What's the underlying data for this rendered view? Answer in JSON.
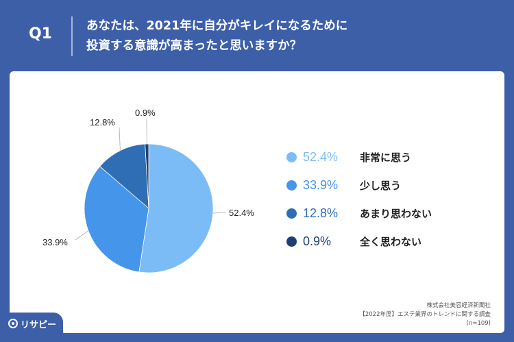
{
  "question": {
    "label": "Q1",
    "line1": "あなたは、2021年に自分がキレイになるために",
    "line2": "投資する意識が高まったと思いますか？"
  },
  "chart_data": {
    "type": "pie",
    "categories": [
      "非常に思う",
      "少し思う",
      "あまり思わない",
      "全く思わない"
    ],
    "values": [
      52.4,
      33.9,
      12.8,
      0.9
    ],
    "value_labels": [
      "52.4%",
      "33.9%",
      "12.8%",
      "0.9%"
    ],
    "colors": [
      "#7bbcf6",
      "#4596ea",
      "#2f6db4",
      "#1e3f73"
    ],
    "legend": "right",
    "start": "top",
    "direction": "clockwise"
  },
  "footer": {
    "line1": "株式会社美容経済新聞社",
    "line2": "【2022年度】エステ業界のトレンドに関する調査",
    "line3": "(n=109)"
  },
  "brand": {
    "logo_text": "リサピー"
  }
}
